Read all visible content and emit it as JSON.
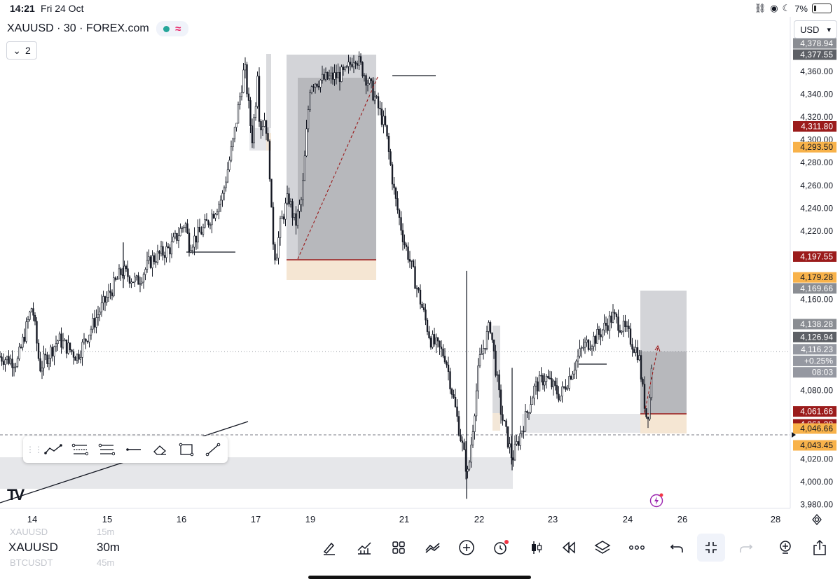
{
  "status_bar": {
    "time": "14:21",
    "date": "Fri 24 Oct",
    "battery": "7%"
  },
  "header": {
    "symbol_title": "XAUUSD · 30 · FOREX.com",
    "collapse_count": "2",
    "currency": "USD"
  },
  "chart_data": {
    "type": "candlestick",
    "title": "XAUUSD · 30 · FOREX.com",
    "x_tick_labels": [
      "14",
      "15",
      "16",
      "17",
      "19",
      "21",
      "22",
      "23",
      "24",
      "26",
      "28"
    ],
    "y_tick_labels": [
      "4,378.94",
      "4,377.55",
      "4,360.00",
      "4,340.00",
      "4,320.00",
      "4,311.80",
      "4,300.00",
      "4,293.50",
      "4,280.00",
      "4,260.00",
      "4,240.00",
      "4,220.00",
      "4,197.55",
      "4,179.28",
      "4,169.66",
      "4,160.00",
      "4,138.28",
      "4,126.94",
      "4,116.23",
      "+0.25%",
      "08:03",
      "4,080.00",
      "4,061.66",
      "4,061.28",
      "4,046.66",
      "4,043.45",
      "4,020.00",
      "4,000.00",
      "3,980.00"
    ],
    "ylim": [
      3980,
      4380
    ],
    "last_price": 4116.23,
    "change_pct": "+0.25%",
    "countdown": "08:03",
    "price_path": [
      {
        "d": 13.55,
        "p": 4110
      },
      {
        "d": 13.8,
        "p": 4105
      },
      {
        "d": 14.0,
        "p": 4155
      },
      {
        "d": 14.1,
        "p": 4100
      },
      {
        "d": 14.35,
        "p": 4125
      },
      {
        "d": 14.6,
        "p": 4110
      },
      {
        "d": 14.9,
        "p": 4150
      },
      {
        "d": 15.2,
        "p": 4185
      },
      {
        "d": 15.4,
        "p": 4175
      },
      {
        "d": 15.6,
        "p": 4195
      },
      {
        "d": 15.85,
        "p": 4205
      },
      {
        "d": 16.05,
        "p": 4228
      },
      {
        "d": 16.1,
        "p": 4208
      },
      {
        "d": 16.3,
        "p": 4222
      },
      {
        "d": 16.55,
        "p": 4250
      },
      {
        "d": 16.7,
        "p": 4300
      },
      {
        "d": 16.85,
        "p": 4365
      },
      {
        "d": 16.95,
        "p": 4300
      },
      {
        "d": 17.05,
        "p": 4370
      },
      {
        "d": 17.15,
        "p": 4310
      },
      {
        "d": 17.35,
        "p": 4320
      },
      {
        "d": 17.5,
        "p": 4280
      },
      {
        "d": 17.6,
        "p": 4220
      },
      {
        "d": 17.73,
        "p": 4195
      },
      {
        "d": 17.9,
        "p": 4225
      },
      {
        "d": 18.2,
        "p": 4250
      },
      {
        "d": 18.45,
        "p": 4225
      },
      {
        "d": 18.7,
        "p": 4250
      },
      {
        "d": 18.9,
        "p": 4320
      },
      {
        "d": 19.0,
        "p": 4350
      },
      {
        "d": 19.75,
        "p": 4358
      },
      {
        "d": 19.95,
        "p": 4375
      },
      {
        "d": 20.3,
        "p": 4345
      },
      {
        "d": 20.6,
        "p": 4310
      },
      {
        "d": 20.8,
        "p": 4250
      },
      {
        "d": 21.05,
        "p": 4200
      },
      {
        "d": 21.35,
        "p": 4125
      },
      {
        "d": 21.55,
        "p": 4110
      },
      {
        "d": 21.85,
        "p": 4005
      },
      {
        "d": 22.0,
        "p": 4105
      },
      {
        "d": 22.15,
        "p": 4138
      },
      {
        "d": 22.3,
        "p": 4060
      },
      {
        "d": 22.45,
        "p": 4020
      },
      {
        "d": 22.6,
        "p": 4050
      },
      {
        "d": 22.75,
        "p": 4082
      },
      {
        "d": 22.9,
        "p": 4092
      },
      {
        "d": 23.1,
        "p": 4075
      },
      {
        "d": 23.4,
        "p": 4118
      },
      {
        "d": 23.6,
        "p": 4128
      },
      {
        "d": 23.8,
        "p": 4145
      },
      {
        "d": 24.0,
        "p": 4130
      },
      {
        "d": 24.2,
        "p": 4120
      },
      {
        "d": 24.4,
        "p": 4112
      },
      {
        "d": 24.55,
        "p": 4080
      },
      {
        "d": 24.7,
        "p": 4055
      },
      {
        "d": 24.8,
        "p": 4070
      },
      {
        "d": 24.9,
        "p": 4116
      }
    ]
  },
  "toolbar_labels": {
    "trend": "trend-line-icon",
    "fib": "fib-retracement-icon",
    "channel": "parallel-channel-icon",
    "hline": "horizontal-ray-icon",
    "eraser": "eraser-icon",
    "rect": "rectangle-icon",
    "line": "line-icon"
  },
  "watchlist": [
    {
      "symbol": "XAUUSD",
      "interval": "15m",
      "state": "faded"
    },
    {
      "symbol": "XAUUSD",
      "interval": "30m",
      "state": "active"
    },
    {
      "symbol": "BTCUSDT",
      "interval": "45m",
      "state": "faded"
    }
  ],
  "colors": {
    "red_label": "#9b1b1b",
    "orange_label": "#f8b24a",
    "grey_label": "#8a8d93",
    "dark_label": "#5d6066",
    "candle": "#131722"
  }
}
